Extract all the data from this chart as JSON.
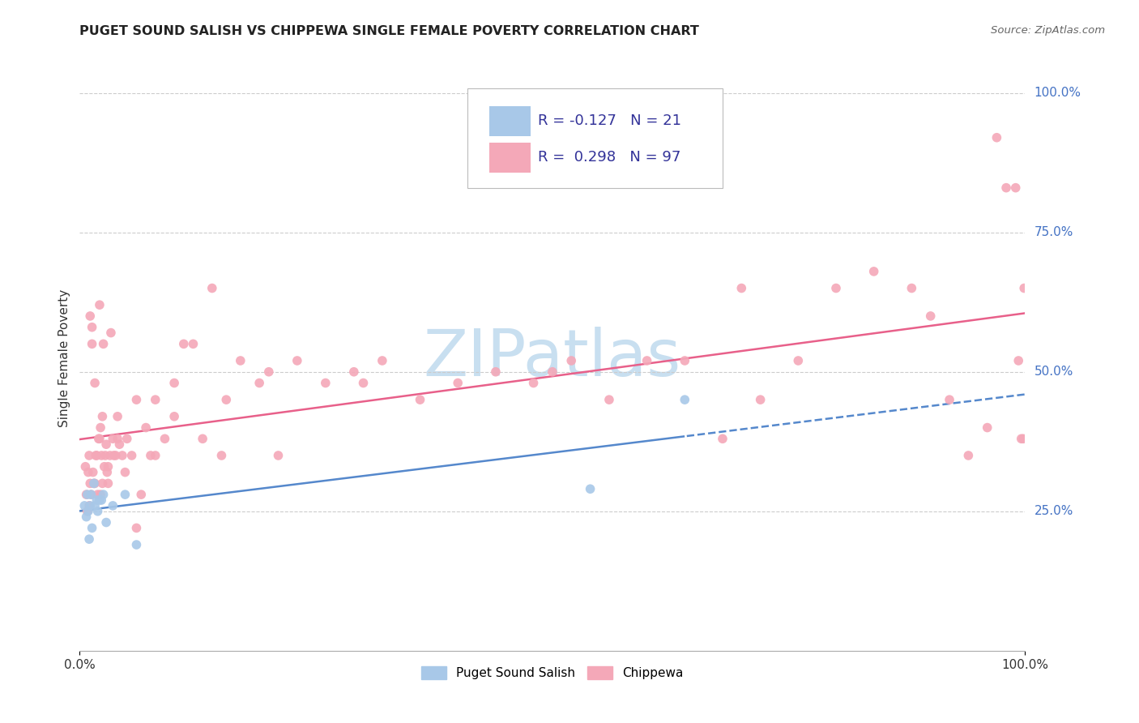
{
  "title": "PUGET SOUND SALISH VS CHIPPEWA SINGLE FEMALE POVERTY CORRELATION CHART",
  "source": "Source: ZipAtlas.com",
  "ylabel": "Single Female Poverty",
  "legend_label1": "Puget Sound Salish",
  "legend_label2": "Chippewa",
  "R1": -0.127,
  "N1": 21,
  "R2": 0.298,
  "N2": 97,
  "color_blue": "#a8c8e8",
  "color_pink": "#f4a8b8",
  "color_blue_line": "#5588cc",
  "color_pink_line": "#e8608a",
  "watermark_color": "#c8dff0",
  "ytick_values": [
    1.0,
    0.75,
    0.5,
    0.25
  ],
  "ytick_labels": [
    "100.0%",
    "75.0%",
    "50.0%",
    "25.0%"
  ],
  "blue_x": [
    0.005,
    0.007,
    0.008,
    0.009,
    0.01,
    0.011,
    0.012,
    0.013,
    0.015,
    0.016,
    0.018,
    0.019,
    0.021,
    0.023,
    0.025,
    0.028,
    0.035,
    0.048,
    0.06,
    0.54,
    0.64
  ],
  "blue_y": [
    0.26,
    0.24,
    0.28,
    0.25,
    0.2,
    0.26,
    0.28,
    0.22,
    0.3,
    0.26,
    0.27,
    0.25,
    0.27,
    0.27,
    0.28,
    0.23,
    0.26,
    0.28,
    0.19,
    0.29,
    0.45
  ],
  "pink_x": [
    0.006,
    0.007,
    0.008,
    0.009,
    0.01,
    0.01,
    0.011,
    0.012,
    0.013,
    0.014,
    0.015,
    0.016,
    0.017,
    0.018,
    0.019,
    0.02,
    0.021,
    0.022,
    0.022,
    0.023,
    0.024,
    0.025,
    0.026,
    0.027,
    0.028,
    0.029,
    0.03,
    0.032,
    0.033,
    0.035,
    0.036,
    0.038,
    0.04,
    0.042,
    0.045,
    0.048,
    0.05,
    0.055,
    0.06,
    0.065,
    0.07,
    0.075,
    0.08,
    0.09,
    0.1,
    0.11,
    0.12,
    0.13,
    0.14,
    0.155,
    0.17,
    0.19,
    0.21,
    0.23,
    0.26,
    0.29,
    0.32,
    0.36,
    0.4,
    0.44,
    0.48,
    0.52,
    0.56,
    0.6,
    0.64,
    0.68,
    0.72,
    0.76,
    0.8,
    0.84,
    0.88,
    0.9,
    0.92,
    0.94,
    0.96,
    0.97,
    0.98,
    0.99,
    0.993,
    0.996,
    0.998,
    0.999,
    0.011,
    0.013,
    0.016,
    0.021,
    0.024,
    0.03,
    0.04,
    0.06,
    0.08,
    0.1,
    0.15,
    0.2,
    0.3,
    0.5,
    0.7
  ],
  "pink_y": [
    0.33,
    0.28,
    0.25,
    0.32,
    0.35,
    0.26,
    0.3,
    0.28,
    0.55,
    0.32,
    0.3,
    0.3,
    0.35,
    0.35,
    0.28,
    0.38,
    0.38,
    0.28,
    0.4,
    0.35,
    0.3,
    0.55,
    0.33,
    0.35,
    0.37,
    0.32,
    0.3,
    0.35,
    0.57,
    0.38,
    0.35,
    0.35,
    0.42,
    0.37,
    0.35,
    0.32,
    0.38,
    0.35,
    0.45,
    0.28,
    0.4,
    0.35,
    0.45,
    0.38,
    0.42,
    0.55,
    0.55,
    0.38,
    0.65,
    0.45,
    0.52,
    0.48,
    0.35,
    0.52,
    0.48,
    0.5,
    0.52,
    0.45,
    0.48,
    0.5,
    0.48,
    0.52,
    0.45,
    0.52,
    0.52,
    0.38,
    0.45,
    0.52,
    0.65,
    0.68,
    0.65,
    0.6,
    0.45,
    0.35,
    0.4,
    0.92,
    0.83,
    0.83,
    0.52,
    0.38,
    0.38,
    0.65,
    0.6,
    0.58,
    0.48,
    0.62,
    0.42,
    0.33,
    0.38,
    0.22,
    0.35,
    0.48,
    0.35,
    0.5,
    0.48,
    0.5,
    0.65
  ]
}
